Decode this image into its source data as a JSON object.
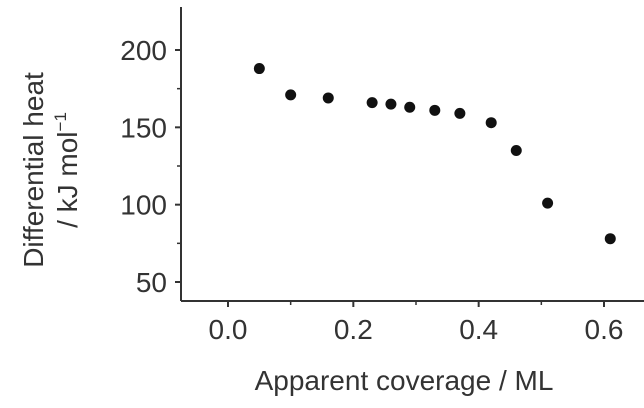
{
  "chart_data": {
    "type": "scatter",
    "title": "",
    "xlabel": "Apparent coverage / ML",
    "ylabel_line1": "Differential heat",
    "ylabel_line2": "/ kJ mol",
    "ylabel_superscript": "−1",
    "xlim": [
      -0.1,
      0.65
    ],
    "ylim": [
      50,
      210
    ],
    "xticks": [
      0.0,
      0.2,
      0.4,
      0.6
    ],
    "xtick_labels": [
      "0.0",
      "0.2",
      "0.4",
      "0.6"
    ],
    "yticks": [
      50,
      100,
      150,
      200
    ],
    "ytick_labels": [
      "50",
      "100",
      "150",
      "200"
    ],
    "grid": false,
    "marker_color": "#111111",
    "axis_color": "#333333",
    "series": [
      {
        "points": [
          {
            "x": 0.05,
            "y": 188
          },
          {
            "x": 0.1,
            "y": 171
          },
          {
            "x": 0.16,
            "y": 169
          },
          {
            "x": 0.23,
            "y": 166
          },
          {
            "x": 0.26,
            "y": 165
          },
          {
            "x": 0.29,
            "y": 163
          },
          {
            "x": 0.33,
            "y": 161
          },
          {
            "x": 0.37,
            "y": 159
          },
          {
            "x": 0.42,
            "y": 153
          },
          {
            "x": 0.46,
            "y": 135
          },
          {
            "x": 0.51,
            "y": 101
          },
          {
            "x": 0.61,
            "y": 78
          }
        ]
      }
    ]
  }
}
